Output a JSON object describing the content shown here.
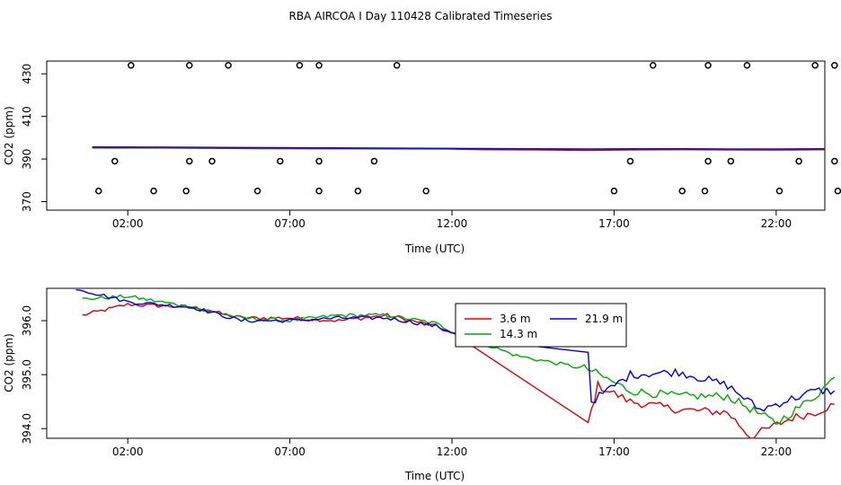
{
  "figure": {
    "title": "RBA AIRCOA I  Day 110428  Calibrated Timeseries"
  },
  "colors": {
    "s36": "#dd0000",
    "s143": "#00aa00",
    "s219": "#0000dd",
    "axis": "#000000",
    "marker": "#000000"
  },
  "chart_data": [
    {
      "type": "line",
      "title": "",
      "xlabel": "Time (UTC)",
      "ylabel": "CO2 (ppm)",
      "xlim": [
        -0.5,
        23.5
      ],
      "ylim": [
        366,
        436
      ],
      "x_ticks": [
        2,
        7,
        12,
        17,
        22
      ],
      "x_tick_labels": [
        "02:00",
        "07:00",
        "12:00",
        "17:00",
        "22:00"
      ],
      "y_ticks": [
        370,
        390,
        410,
        430
      ],
      "y_tick_labels": [
        "370",
        "390",
        "410",
        "430"
      ],
      "flag_markers": {
        "marker": "open-circle",
        "y430_x": [
          2.1,
          3.9,
          5.1,
          7.3,
          7.9,
          10.3,
          18.2,
          19.9,
          21.1,
          23.2,
          23.8
        ],
        "y390_x": [
          1.6,
          3.9,
          4.6,
          6.7,
          7.9,
          9.6,
          17.5,
          19.9,
          20.6,
          22.7,
          23.8
        ],
        "y375_x": [
          1.1,
          2.8,
          3.8,
          6.0,
          7.9,
          9.1,
          11.2,
          17.0,
          19.1,
          19.8,
          22.1,
          23.9
        ]
      },
      "series": [
        {
          "name_key": "s36",
          "x": [
            0.9,
            3,
            6,
            9,
            11.8,
            13,
            14.5,
            16.2,
            17.5,
            19,
            20.5,
            22,
            23.5
          ],
          "values": [
            395.2,
            395.2,
            394.9,
            394.8,
            394.7,
            394.4,
            394.3,
            394.1,
            394.3,
            394.4,
            394.3,
            394.2,
            394.4
          ]
        },
        {
          "name_key": "s143",
          "x": [
            0.9,
            3,
            6,
            9,
            11.8,
            13,
            14.5,
            16.2,
            17.5,
            19,
            20.5,
            22,
            23.5
          ],
          "values": [
            395.5,
            395.4,
            395.2,
            395.1,
            394.9,
            394.8,
            394.7,
            394.6,
            394.7,
            394.7,
            394.6,
            394.6,
            394.7
          ]
        },
        {
          "name_key": "s219",
          "x": [
            0.9,
            3,
            6,
            9,
            11.8,
            13,
            14.5,
            16.2,
            17.5,
            19,
            20.5,
            22,
            23.5
          ],
          "values": [
            395.7,
            395.6,
            395.4,
            395.2,
            395.0,
            394.9,
            394.8,
            394.7,
            394.8,
            394.8,
            394.7,
            394.7,
            394.8
          ]
        }
      ]
    },
    {
      "type": "line",
      "title": "",
      "xlabel": "Time (UTC)",
      "ylabel": "CO2 (ppm)",
      "xlim": [
        -0.5,
        23.5
      ],
      "ylim": [
        393.82,
        396.6
      ],
      "x_ticks": [
        2,
        7,
        12,
        17,
        22
      ],
      "x_tick_labels": [
        "02:00",
        "07:00",
        "12:00",
        "17:00",
        "22:00"
      ],
      "y_ticks": [
        394.0,
        395.0,
        396.0
      ],
      "y_tick_labels": [
        "394.0",
        "395.0",
        "396.0"
      ],
      "legend": {
        "position": "center-right",
        "entries": [
          {
            "label": "3.6 m",
            "color_key": "s36"
          },
          {
            "label": "14.3 m",
            "color_key": "s143"
          },
          {
            "label": "21.9 m",
            "color_key": "s219"
          }
        ]
      },
      "series": [
        {
          "name": "3.6 m",
          "color_key": "s36",
          "anchors": [
            [
              0.6,
              396.1
            ],
            [
              2.0,
              396.3
            ],
            [
              4.0,
              396.25
            ],
            [
              5.5,
              396.05
            ],
            [
              7.0,
              396.05
            ],
            [
              8.5,
              396.0
            ],
            [
              10.0,
              396.1
            ],
            [
              11.5,
              395.9
            ],
            [
              12.2,
              395.7
            ],
            [
              16.2,
              394.1
            ],
            [
              16.5,
              394.8
            ],
            [
              17.5,
              394.5
            ],
            [
              19.0,
              394.35
            ],
            [
              20.5,
              394.3
            ],
            [
              21.2,
              393.85
            ],
            [
              22.5,
              394.2
            ],
            [
              23.2,
              394.3
            ],
            [
              23.8,
              394.45
            ]
          ]
        },
        {
          "name": "14.3 m",
          "color_key": "s143",
          "anchors": [
            [
              0.6,
              396.4
            ],
            [
              2.0,
              396.45
            ],
            [
              4.0,
              396.25
            ],
            [
              5.5,
              396.05
            ],
            [
              7.0,
              396.0
            ],
            [
              8.5,
              396.1
            ],
            [
              10.0,
              396.1
            ],
            [
              11.5,
              395.95
            ],
            [
              12.2,
              395.75
            ],
            [
              14.0,
              395.35
            ],
            [
              16.2,
              395.1
            ],
            [
              17.5,
              394.7
            ],
            [
              19.0,
              394.6
            ],
            [
              20.5,
              394.6
            ],
            [
              22.0,
              394.1
            ],
            [
              23.2,
              394.6
            ],
            [
              23.8,
              394.95
            ]
          ]
        },
        {
          "name": "21.9 m",
          "color_key": "s219",
          "anchors": [
            [
              0.4,
              396.6
            ],
            [
              2.0,
              396.35
            ],
            [
              4.0,
              396.25
            ],
            [
              5.5,
              396.0
            ],
            [
              7.0,
              396.0
            ],
            [
              8.5,
              396.05
            ],
            [
              10.0,
              396.05
            ],
            [
              11.5,
              395.9
            ],
            [
              12.2,
              395.75
            ],
            [
              13.5,
              395.6
            ],
            [
              16.2,
              395.45
            ],
            [
              16.3,
              394.5
            ],
            [
              17.5,
              395.0
            ],
            [
              19.0,
              395.05
            ],
            [
              20.5,
              394.8
            ],
            [
              21.5,
              394.35
            ],
            [
              23.2,
              394.7
            ],
            [
              23.8,
              394.7
            ]
          ]
        }
      ]
    }
  ]
}
